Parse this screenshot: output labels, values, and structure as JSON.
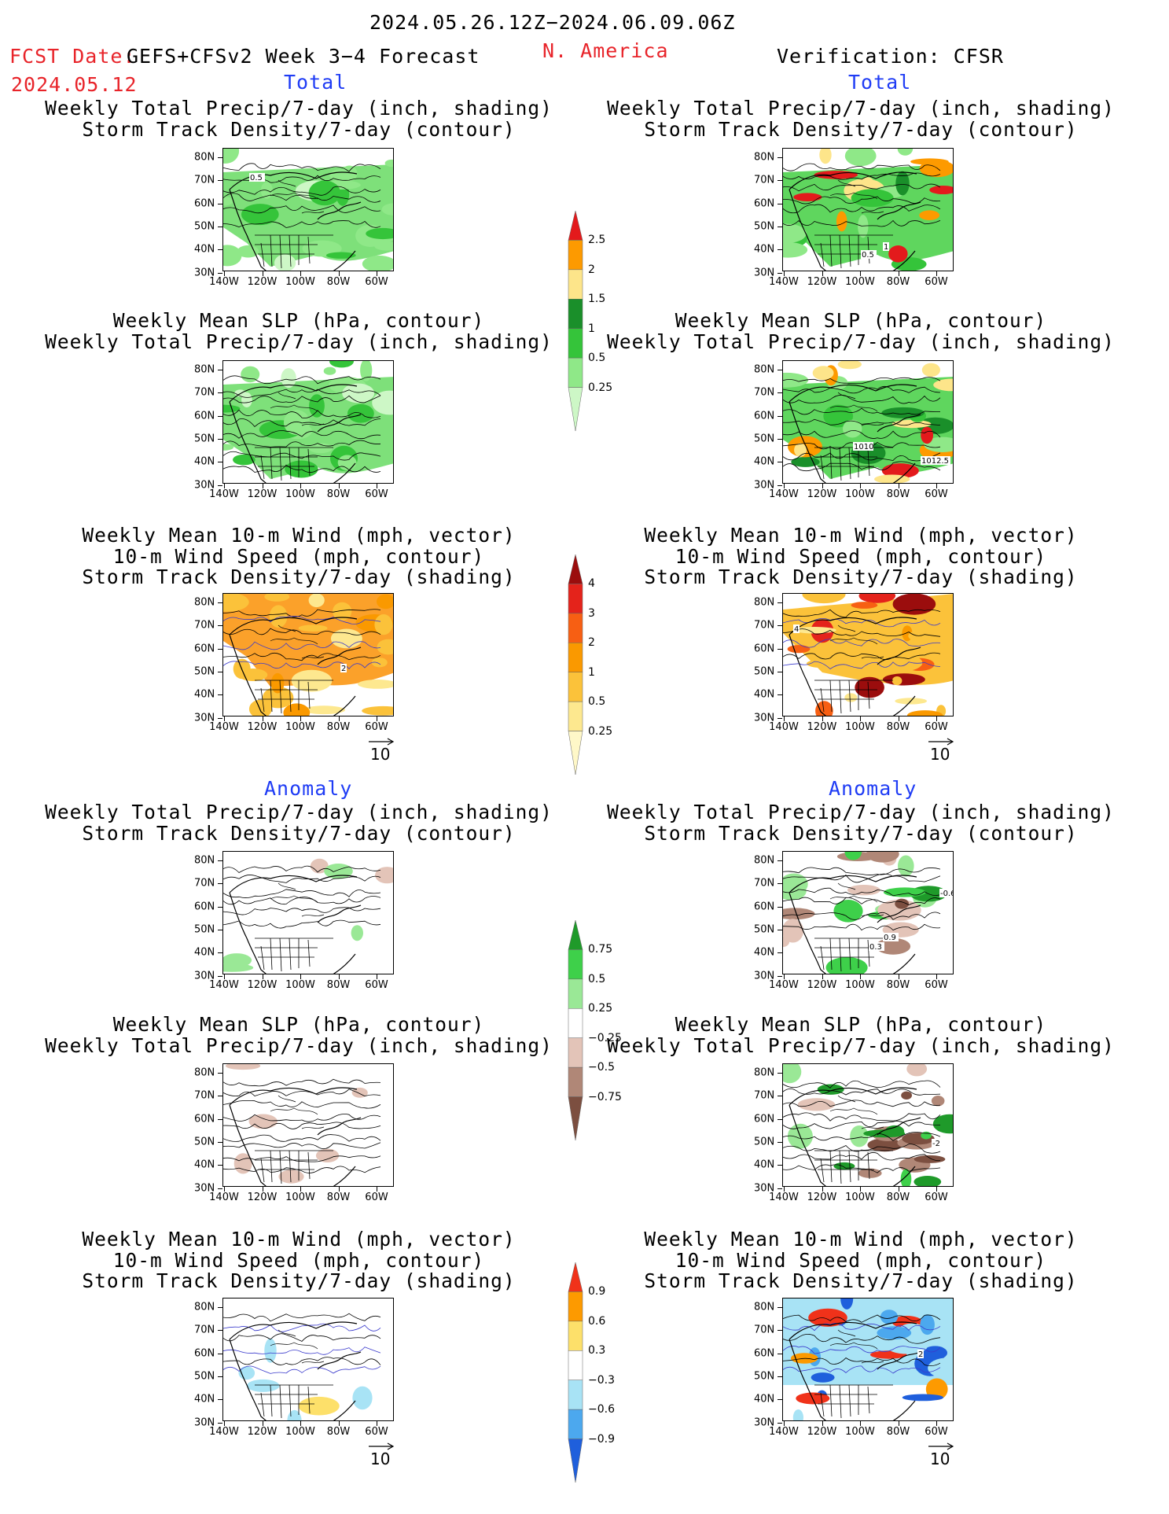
{
  "header": {
    "date_range": "2024.05.26.12Z−2024.06.09.06Z",
    "fcst_date_label": "FCST Date:",
    "model_label": "GEFS+CFSv2 Week 3−4 Forecast",
    "fcst_date": "2024.05.12",
    "region": "N. America",
    "verification": "Verification: CFSR"
  },
  "sections": {
    "total_left": "Total",
    "total_right": "Total",
    "anomaly_left": "Anomaly",
    "anomaly_right": "Anomaly"
  },
  "panel_titles": {
    "precip_track": [
      "Weekly Total Precip/7-day (inch, shading)",
      "Storm Track Density/7-day (contour)"
    ],
    "slp_precip": [
      "Weekly Mean SLP (hPa, contour)",
      "Weekly Total Precip/7-day (inch, shading)"
    ],
    "wind_track": [
      "Weekly Mean 10-m Wind (mph, vector)",
      "10-m Wind Speed (mph, contour)",
      "Storm Track Density/7-day (shading)"
    ]
  },
  "axes": {
    "lat_labels": [
      "80N",
      "70N",
      "60N",
      "50N",
      "40N",
      "30N"
    ],
    "lon_labels": [
      "140W",
      "120W",
      "100W",
      "80W",
      "60W"
    ]
  },
  "map_contour_labels": {
    "total_fcst_precip": "0.5",
    "total_verif_precip_a": "0.5",
    "total_verif_precip_b": "1",
    "total_verif_slp_a": "1010",
    "total_verif_slp_b": "1012.5",
    "total_fcst_wind": "2",
    "total_verif_wind": "4",
    "anom_verif_precip_a": "-0.6",
    "anom_verif_precip_b": "0.9",
    "anom_verif_precip_c": "0.3",
    "anom_verif_slp": "-2",
    "anom_verif_wind": "2"
  },
  "vector_ref": "10",
  "colorbars": {
    "precip_total": {
      "labels": [
        "2.5",
        "2",
        "1.5",
        "1",
        "0.5",
        "0.25"
      ],
      "colors": [
        "#e31a1c",
        "#fd9a00",
        "#fde58a",
        "#1a8f2a",
        "#35c43a",
        "#8fe888",
        "#cdf7c6"
      ]
    },
    "track_total": {
      "labels": [
        "4",
        "3",
        "2",
        "1",
        "0.5",
        "0.25"
      ],
      "colors": [
        "#9b0d0d",
        "#e4231b",
        "#f75f13",
        "#fa9900",
        "#fbc23a",
        "#fde88f",
        "#fff8c8"
      ]
    },
    "precip_anom": {
      "labels": [
        "0.75",
        "0.5",
        "0.25",
        "−0.25",
        "−0.5",
        "−0.75"
      ],
      "colors": [
        "#1f9a2a",
        "#3ed04a",
        "#9ae896",
        "#ffffff",
        "#e3c4b8",
        "#b08777",
        "#7c4f40"
      ]
    },
    "track_anom": {
      "labels": [
        "0.9",
        "0.6",
        "0.3",
        "−0.3",
        "−0.6",
        "−0.9"
      ],
      "colors": [
        "#f0321a",
        "#fd9a00",
        "#fde06a",
        "#ffffff",
        "#a8e3f5",
        "#4ca8ee",
        "#1f5fdc"
      ]
    }
  }
}
